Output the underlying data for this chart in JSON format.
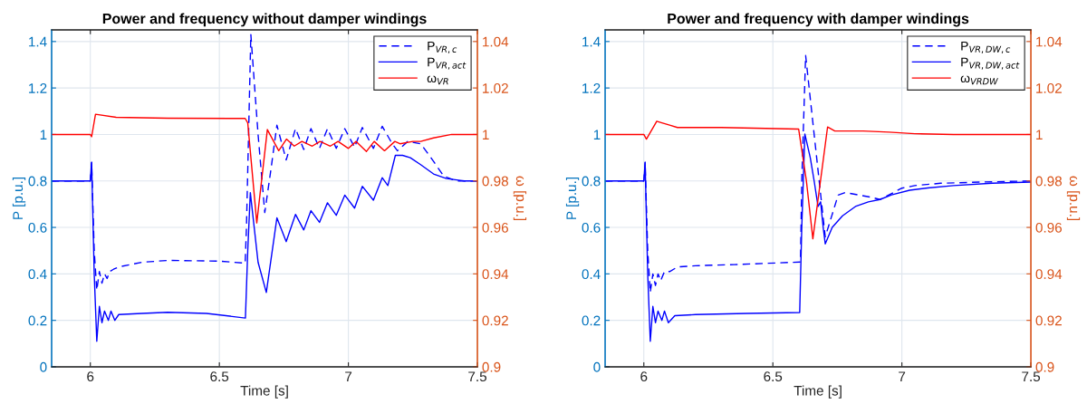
{
  "chart_data": [
    {
      "type": "line",
      "title": "Power and frequency without damper windings",
      "xlabel": "Time [s]",
      "ylabel": "P [p.u.]",
      "y2label": "ω [p.u.]",
      "xlim": [
        5.85,
        7.5
      ],
      "xticks": [
        6,
        6.5,
        7,
        7.5
      ],
      "ylim": [
        0,
        1.45
      ],
      "yticks": [
        0,
        0.2,
        0.4,
        0.6,
        0.8,
        1,
        1.2,
        1.4
      ],
      "y2lim": [
        0.9,
        1.045
      ],
      "y2ticks": [
        0.9,
        0.92,
        0.94,
        0.96,
        0.98,
        1,
        1.02,
        1.04
      ],
      "grid": true,
      "legend": "top right",
      "series": [
        {
          "name": "P$_{VR,c}$",
          "color": "#0000ff",
          "line_style": "dashed",
          "x": [
            5.85,
            6.0,
            6.005,
            6.015,
            6.025,
            6.035,
            6.045,
            6.055,
            6.065,
            6.075,
            6.09,
            6.11,
            6.2,
            6.3,
            6.5,
            6.6,
            6.605,
            6.622,
            6.65,
            6.676,
            6.7,
            6.723,
            6.759,
            6.795,
            6.827,
            6.855,
            6.888,
            6.919,
            6.953,
            6.986,
            7.024,
            7.054,
            7.097,
            7.131,
            7.17,
            7.19,
            7.23,
            7.28,
            7.32,
            7.37,
            7.42,
            7.5
          ],
          "values": [
            0.8,
            0.8,
            0.88,
            0.5,
            0.33,
            0.41,
            0.36,
            0.4,
            0.38,
            0.41,
            0.42,
            0.43,
            0.45,
            0.458,
            0.455,
            0.446,
            0.6,
            1.43,
            1.0,
            0.664,
            0.85,
            1.04,
            0.89,
            1.025,
            0.935,
            1.025,
            0.94,
            1.025,
            0.94,
            1.025,
            0.945,
            1.03,
            0.94,
            1.035,
            0.96,
            0.93,
            0.97,
            0.96,
            0.9,
            0.82,
            0.8,
            0.8
          ]
        },
        {
          "name": "P$_{VR,act}$",
          "color": "#0000ff",
          "line_style": "solid",
          "x": [
            5.85,
            6.0,
            6.005,
            6.015,
            6.025,
            6.035,
            6.045,
            6.055,
            6.07,
            6.08,
            6.095,
            6.11,
            6.2,
            6.3,
            6.45,
            6.601,
            6.61,
            6.62,
            6.65,
            6.682,
            6.723,
            6.759,
            6.795,
            6.827,
            6.855,
            6.888,
            6.919,
            6.953,
            6.986,
            7.024,
            7.054,
            7.097,
            7.131,
            7.153,
            7.182,
            7.21,
            7.24,
            7.28,
            7.33,
            7.38,
            7.45,
            7.5
          ],
          "values": [
            0.8,
            0.8,
            0.88,
            0.4,
            0.11,
            0.26,
            0.19,
            0.24,
            0.2,
            0.24,
            0.2,
            0.225,
            0.23,
            0.235,
            0.23,
            0.21,
            0.5,
            0.75,
            0.45,
            0.32,
            0.641,
            0.539,
            0.656,
            0.589,
            0.672,
            0.622,
            0.706,
            0.652,
            0.739,
            0.683,
            0.777,
            0.717,
            0.814,
            0.78,
            0.91,
            0.91,
            0.9,
            0.87,
            0.83,
            0.81,
            0.8,
            0.8
          ]
        },
        {
          "name": "ω$_{VR}$",
          "color": "#ff0000",
          "line_style": "solid",
          "axis": "y2",
          "x": [
            5.85,
            6.0,
            6.005,
            6.02,
            6.1,
            6.3,
            6.6,
            6.61,
            6.645,
            6.686,
            6.73,
            6.76,
            6.79,
            6.82,
            6.86,
            6.89,
            6.93,
            6.96,
            7.0,
            7.03,
            7.07,
            7.1,
            7.14,
            7.18,
            7.2,
            7.25,
            7.28,
            7.33,
            7.4,
            7.5
          ],
          "values": [
            1.0,
            1.0,
            0.999,
            1.0087,
            1.0074,
            1.007,
            1.0069,
            1.005,
            0.9619,
            1.0021,
            0.993,
            0.998,
            0.995,
            0.997,
            0.995,
            0.997,
            0.995,
            0.997,
            0.994,
            0.997,
            0.9927,
            0.997,
            0.993,
            0.997,
            0.996,
            0.997,
            0.997,
            0.9985,
            1.0,
            1.0
          ]
        }
      ]
    },
    {
      "type": "line",
      "title": "Power and frequency with damper windings",
      "xlabel": "Time [s]",
      "ylabel": "P [p.u.]",
      "y2label": "ω [p.u.]",
      "xlim": [
        5.85,
        7.5
      ],
      "xticks": [
        6,
        6.5,
        7,
        7.5
      ],
      "ylim": [
        0,
        1.45
      ],
      "yticks": [
        0,
        0.2,
        0.4,
        0.6,
        0.8,
        1,
        1.2,
        1.4
      ],
      "y2lim": [
        0.9,
        1.045
      ],
      "y2ticks": [
        0.9,
        0.92,
        0.94,
        0.96,
        0.98,
        1,
        1.02,
        1.04
      ],
      "grid": true,
      "legend": "top right",
      "series": [
        {
          "name": "P$_{VR,DW,c}$",
          "color": "#0000ff",
          "line_style": "dashed",
          "x": [
            5.85,
            6.0,
            6.005,
            6.015,
            6.025,
            6.035,
            6.045,
            6.055,
            6.065,
            6.08,
            6.1,
            6.131,
            6.2,
            6.35,
            6.607,
            6.612,
            6.627,
            6.66,
            6.703,
            6.753,
            6.78,
            6.83,
            6.88,
            6.915,
            7.0,
            7.05,
            7.15,
            7.3,
            7.5
          ],
          "values": [
            0.8,
            0.8,
            0.88,
            0.5,
            0.32,
            0.4,
            0.35,
            0.4,
            0.37,
            0.41,
            0.41,
            0.43,
            0.435,
            0.44,
            0.451,
            0.8,
            1.34,
            1.0,
            0.559,
            0.739,
            0.75,
            0.74,
            0.73,
            0.72,
            0.769,
            0.78,
            0.79,
            0.795,
            0.8
          ]
        },
        {
          "name": "P$_{VR,DW,act}$",
          "color": "#0000ff",
          "line_style": "solid",
          "x": [
            5.85,
            6.0,
            6.005,
            6.015,
            6.025,
            6.035,
            6.045,
            6.055,
            6.07,
            6.08,
            6.095,
            6.12,
            6.2,
            6.4,
            6.604,
            6.612,
            6.624,
            6.645,
            6.66,
            6.675,
            6.685,
            6.695,
            6.703,
            6.73,
            6.77,
            6.82,
            6.87,
            6.915,
            6.96,
            7.03,
            7.1,
            7.2,
            7.35,
            7.5
          ],
          "values": [
            0.8,
            0.8,
            0.88,
            0.4,
            0.11,
            0.26,
            0.19,
            0.24,
            0.2,
            0.24,
            0.19,
            0.22,
            0.225,
            0.23,
            0.234,
            0.6,
            1.002,
            0.9,
            0.8,
            0.69,
            0.71,
            0.6,
            0.529,
            0.6,
            0.65,
            0.69,
            0.71,
            0.72,
            0.74,
            0.76,
            0.77,
            0.78,
            0.79,
            0.795
          ]
        },
        {
          "name": "ω$_{VRDW}$",
          "color": "#ff0000",
          "line_style": "solid",
          "axis": "y2",
          "x": [
            5.85,
            6.0,
            6.01,
            6.05,
            6.07,
            6.1,
            6.13,
            6.3,
            6.6,
            6.63,
            6.655,
            6.712,
            6.74,
            6.85,
            6.95,
            7.05,
            7.2,
            7.5
          ],
          "values": [
            1.0,
            1.0,
            0.998,
            1.0057,
            1.005,
            1.004,
            1.003,
            1.003,
            1.0023,
            0.98,
            0.9551,
            1.0032,
            1.0015,
            1.0015,
            1.001,
            1.0003,
            1.0,
            1.0
          ]
        }
      ]
    }
  ]
}
